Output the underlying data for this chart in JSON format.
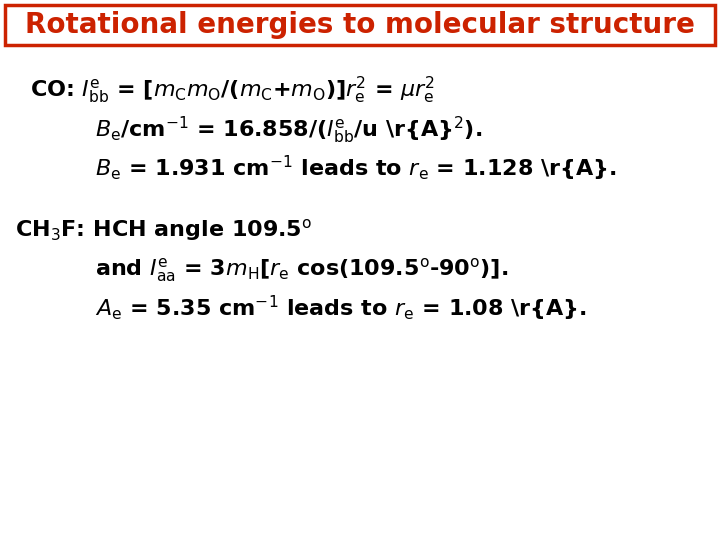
{
  "title": "Rotational energies to molecular structure",
  "title_color": "#CC2200",
  "title_bg": "#FFFFFF",
  "title_border_color": "#CC2200",
  "background_color": "#FFFFFF",
  "text_color": "#000000",
  "title_fontsize": 20,
  "body_fontsize": 16
}
